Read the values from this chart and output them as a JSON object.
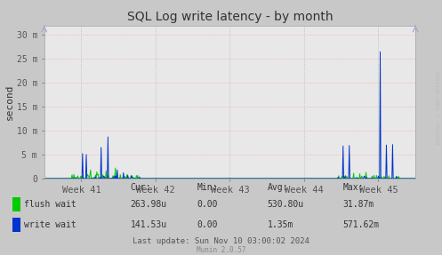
{
  "title": "SQL Log write latency - by month",
  "ylabel": "second",
  "background_color": "#c8c8c8",
  "plot_bg_color": "#e8e8e8",
  "yticks": [
    0,
    5000000,
    10000000,
    15000000,
    20000000,
    25000000,
    30000000
  ],
  "ytick_labels": [
    "0",
    "5 m",
    "10 m",
    "15 m",
    "20 m",
    "25 m",
    "30 m"
  ],
  "ylim": [
    0,
    32000000
  ],
  "xtick_labels": [
    "Week 41",
    "Week 42",
    "Week 43",
    "Week 44",
    "Week 45"
  ],
  "legend": [
    {
      "label": "flush wait",
      "color": "#00cc00"
    },
    {
      "label": "write wait",
      "color": "#0033cc"
    }
  ],
  "legend_stats": [
    {
      "cur": "263.98u",
      "min": "0.00",
      "avg": "530.80u",
      "max": "31.87m"
    },
    {
      "cur": "141.53u",
      "min": "0.00",
      "avg": "1.35m",
      "max": "571.62m"
    }
  ],
  "footer": "Munin 2.0.57",
  "last_update": "Last update: Sun Nov 10 03:00:02 2024",
  "rrdtool_label": "RRDTOOL / TOBI OETIKER",
  "total_points": 600
}
